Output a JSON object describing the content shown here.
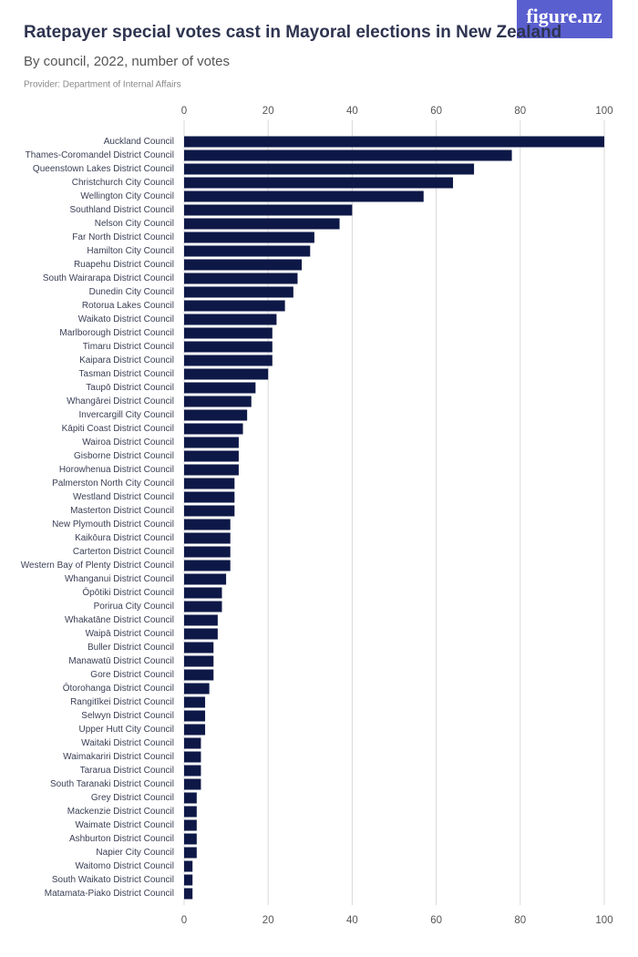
{
  "logo": "figure.nz",
  "chart_data": {
    "type": "bar",
    "orientation": "horizontal",
    "title": "Ratepayer special votes cast in Mayoral elections in New Zealand",
    "subtitle": "By council, 2022, number of votes",
    "source": "Provider: Department of Internal Affairs",
    "color": "#0e1847",
    "grid": true,
    "xlim": [
      0,
      100
    ],
    "xticks": [
      0,
      20,
      40,
      60,
      80,
      100
    ],
    "categories": [
      "Auckland Council",
      "Thames-Coromandel District Council",
      "Queenstown Lakes District Council",
      "Christchurch City Council",
      "Wellington City Council",
      "Southland District Council",
      "Nelson City Council",
      "Far North District Council",
      "Hamilton City Council",
      "Ruapehu District Council",
      "South Wairarapa District Council",
      "Dunedin City Council",
      "Rotorua Lakes Council",
      "Waikato District Council",
      "Marlborough District Council",
      "Timaru District Council",
      "Kaipara District Council",
      "Tasman District Council",
      "Taupō District Council",
      "Whangārei District Council",
      "Invercargill City Council",
      "Kāpiti Coast District Council",
      "Wairoa District Council",
      "Gisborne District Council",
      "Horowhenua District Council",
      "Palmerston North City Council",
      "Westland District Council",
      "Masterton District Council",
      "New Plymouth District Council",
      "Kaikōura District Council",
      "Carterton District Council",
      "Western Bay of Plenty District Council",
      "Whanganui District Council",
      "Ōpōtiki District Council",
      "Porirua City Council",
      "Whakatāne District Council",
      "Waipā District Council",
      "Buller District Council",
      "Manawatū District Council",
      "Gore District Council",
      "Ōtorohanga District Council",
      "Rangitīkei District Council",
      "Selwyn District Council",
      "Upper Hutt City Council",
      "Waitaki District Council",
      "Waimakariri District Council",
      "Tararua District Council",
      "South Taranaki District Council",
      "Grey District Council",
      "Mackenzie District Council",
      "Waimate District Council",
      "Ashburton District Council",
      "Napier City Council",
      "Waitomo District Council",
      "South Waikato District Council",
      "Matamata-Piako District Council"
    ],
    "values": [
      100,
      78,
      69,
      64,
      57,
      40,
      37,
      31,
      30,
      28,
      27,
      26,
      24,
      22,
      21,
      21,
      21,
      20,
      17,
      16,
      15,
      14,
      13,
      13,
      13,
      12,
      12,
      12,
      11,
      11,
      11,
      11,
      10,
      9,
      9,
      8,
      8,
      7,
      7,
      7,
      6,
      5,
      5,
      5,
      4,
      4,
      4,
      4,
      3,
      3,
      3,
      3,
      3,
      2,
      2,
      2
    ]
  }
}
